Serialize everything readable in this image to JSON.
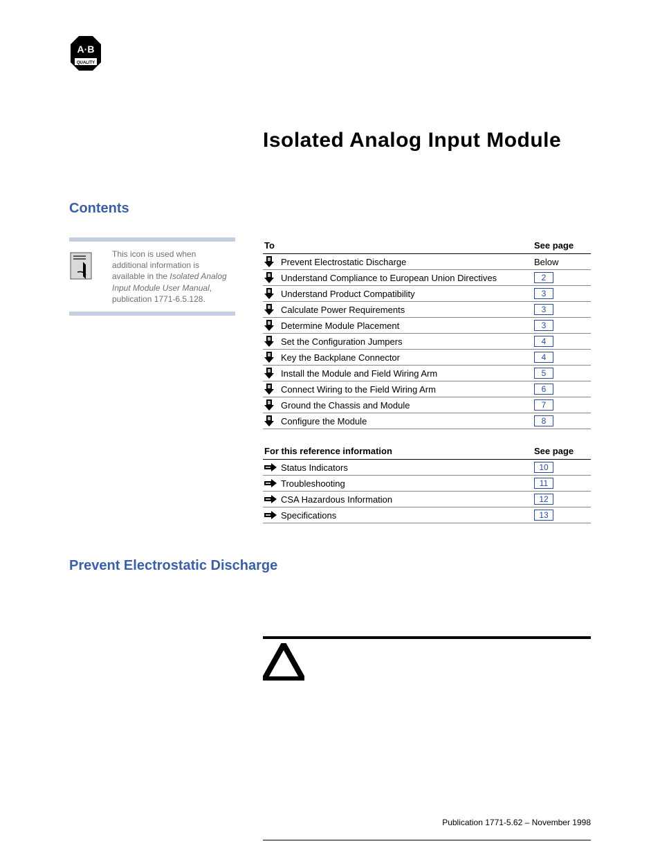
{
  "title": "Isolated Analog Input Module",
  "contents_heading": "Contents",
  "note": {
    "line1": "This icon is used when",
    "line2": "additional information is",
    "line3": "available in the ",
    "italic": "Isolated Analog Input Module User Manual",
    "line4": ", publication 1771-6.5.128."
  },
  "toc1": {
    "col1": "To",
    "col2": "See page",
    "rows": [
      {
        "label": "Prevent Electrostatic Discharge",
        "page": "Below",
        "link": false
      },
      {
        "label": "Understand Compliance to European Union Directives",
        "page": "2",
        "link": true
      },
      {
        "label": "Understand Product Compatibility",
        "page": "3",
        "link": true
      },
      {
        "label": "Calculate Power Requirements",
        "page": "3",
        "link": true
      },
      {
        "label": "Determine Module Placement",
        "page": "3",
        "link": true
      },
      {
        "label": "Set the Configuration Jumpers",
        "page": "4",
        "link": true
      },
      {
        "label": "Key the Backplane Connector",
        "page": "4",
        "link": true
      },
      {
        "label": "Install the Module and Field Wiring Arm",
        "page": "5",
        "link": true
      },
      {
        "label": "Connect Wiring to the Field Wiring Arm",
        "page": "6",
        "link": true
      },
      {
        "label": "Ground the Chassis and Module",
        "page": "7",
        "link": true
      },
      {
        "label": "Configure the Module",
        "page": "8",
        "link": true
      }
    ]
  },
  "toc2": {
    "col1": "For this reference information",
    "col2": "See page",
    "rows": [
      {
        "label": "Status Indicators",
        "page": "10",
        "link": true
      },
      {
        "label": "Troubleshooting",
        "page": "11",
        "link": true
      },
      {
        "label": "CSA Hazardous Information",
        "page": "12",
        "link": true
      },
      {
        "label": "Specifications",
        "page": "13",
        "link": true
      }
    ]
  },
  "section2_heading": "Prevent Electrostatic Discharge",
  "footer": "Publication 1771-5.62 – November 1998",
  "colors": {
    "heading": "#3a5ea8",
    "bar": "#c6cfe2",
    "link_border": "#2a4aa0"
  }
}
